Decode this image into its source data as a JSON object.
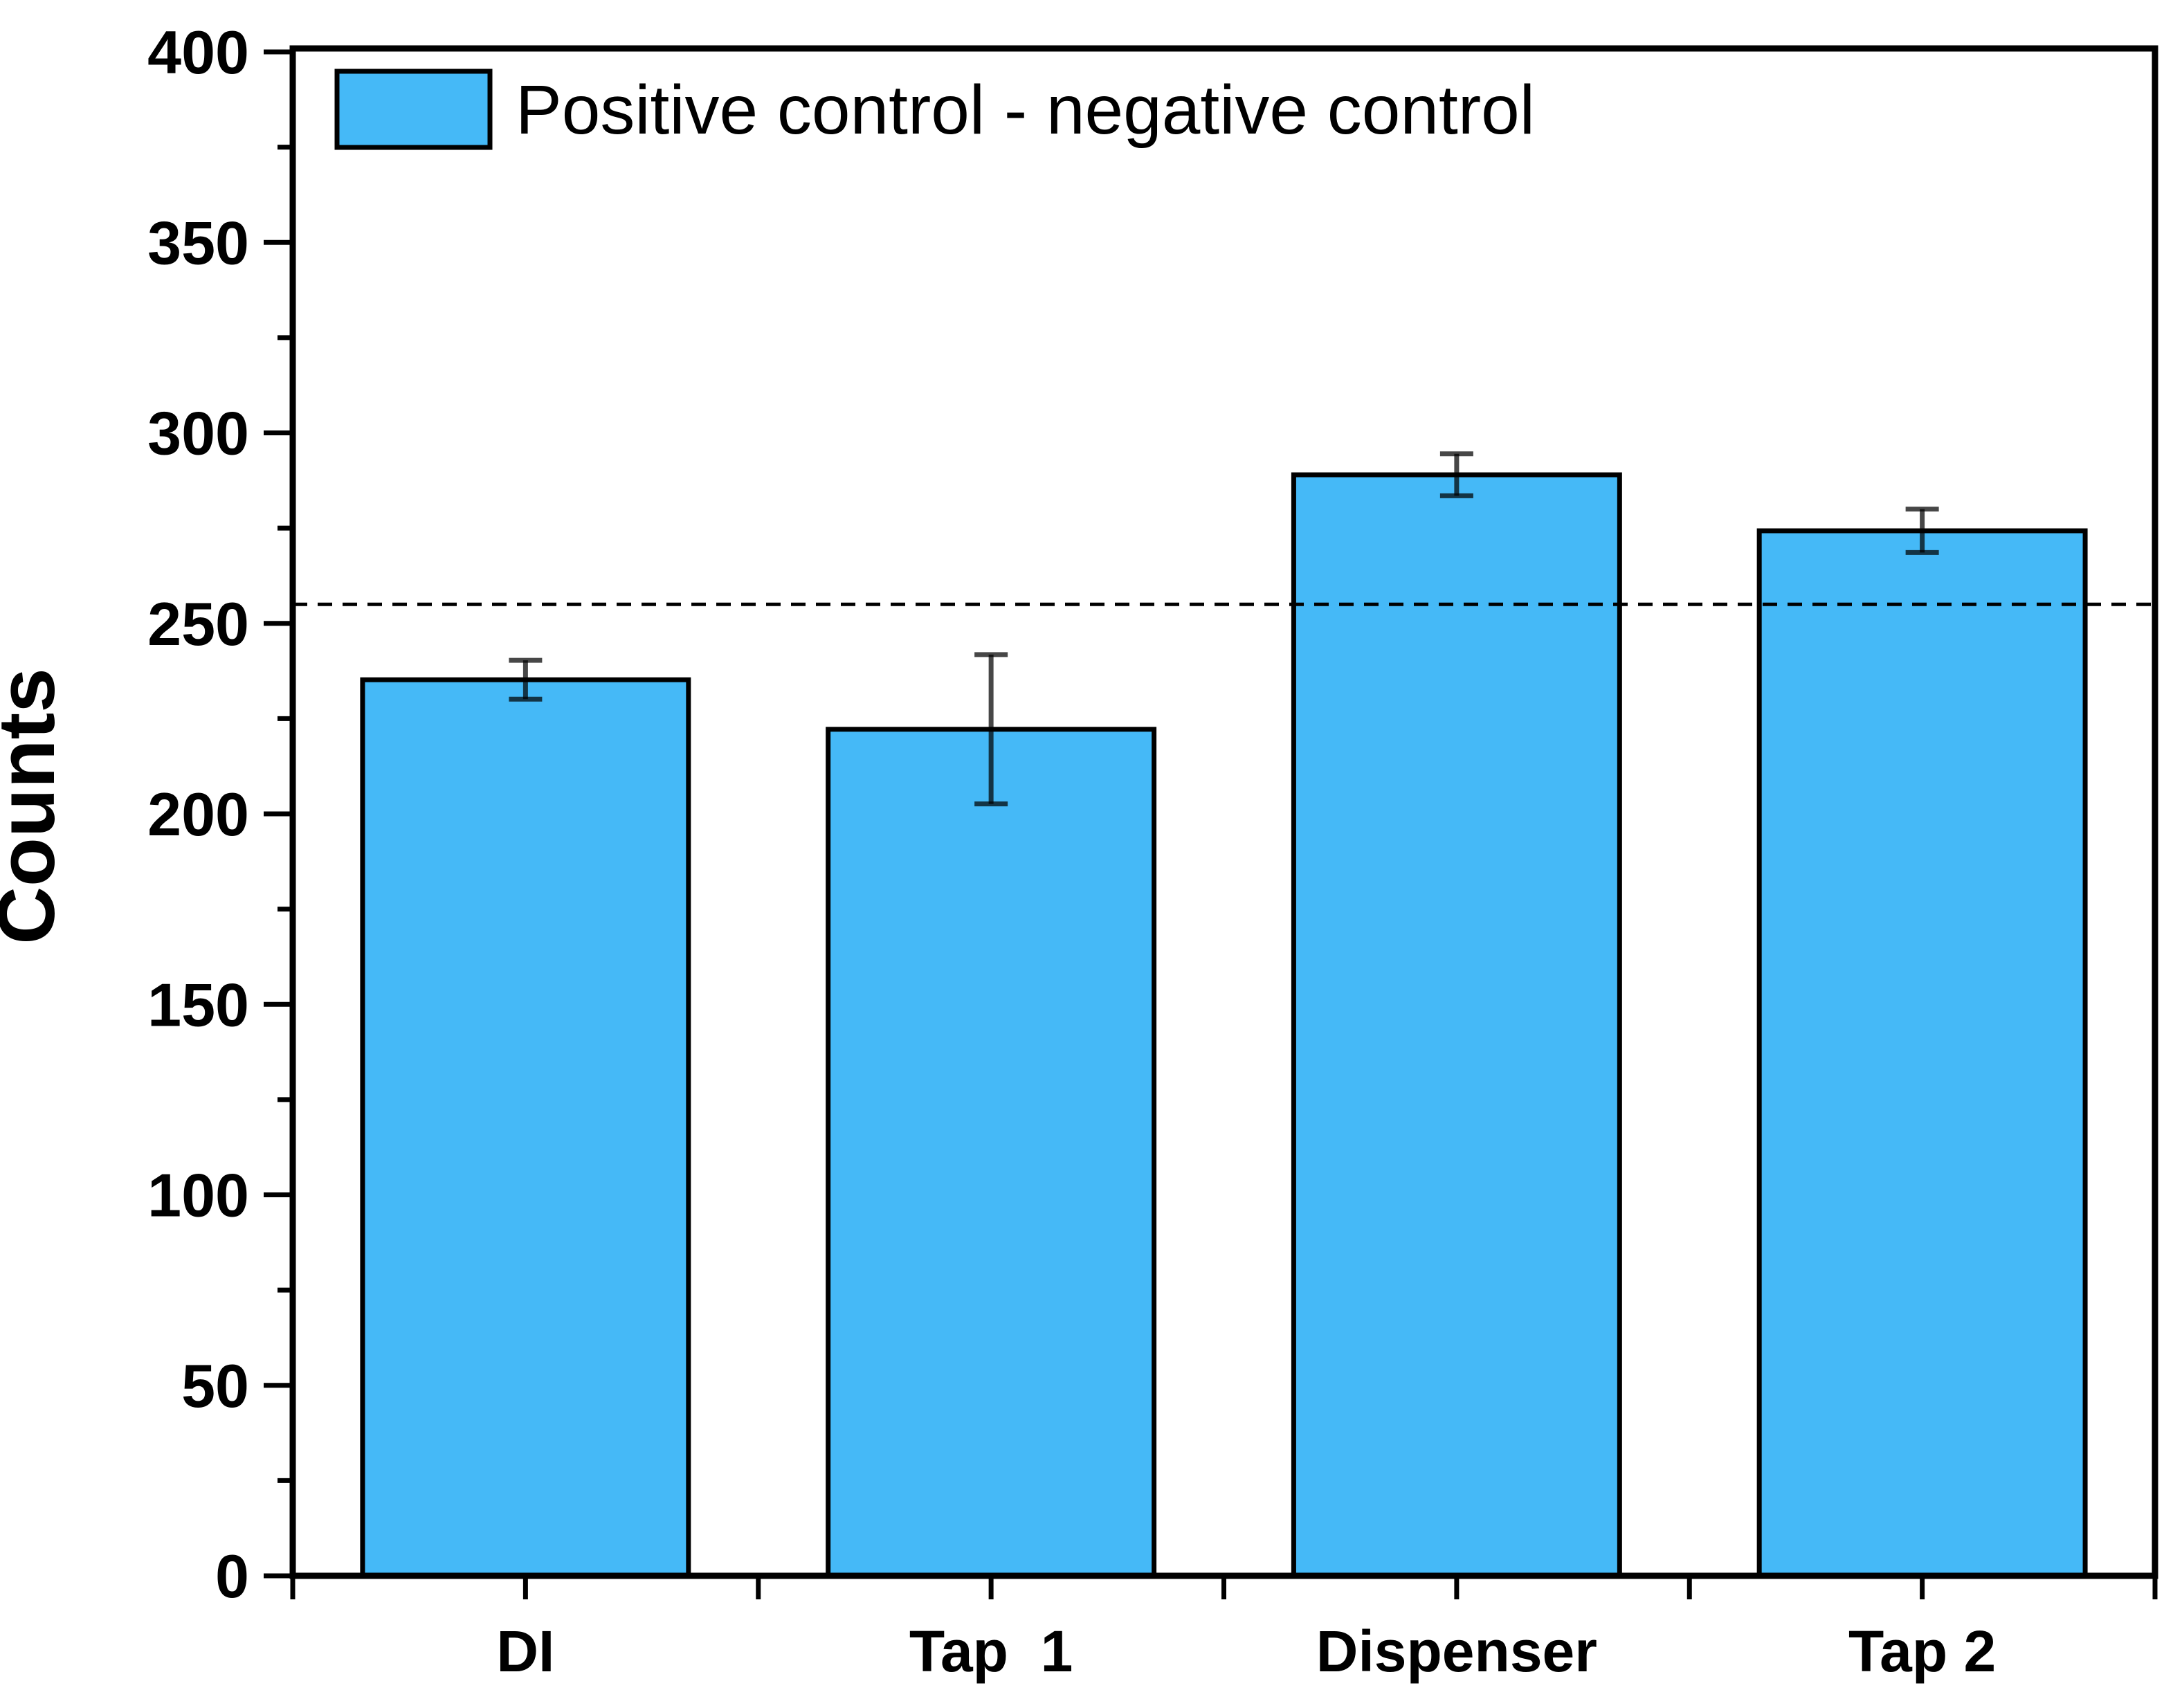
{
  "figure": {
    "background": "#ffffff"
  },
  "chart_data": {
    "type": "bar",
    "title": "",
    "xlabel": "",
    "ylabel": "Counts",
    "categories": [
      "DI",
      "Tap  1",
      "Dispenser",
      "Tap 2"
    ],
    "series": [
      {
        "name": "Positive control - negative control",
        "values": [
          235.2,
          222.2,
          289.0,
          274.3
        ],
        "errors": [
          5.1,
          19.6,
          5.5,
          5.7
        ]
      }
    ],
    "reference_line": {
      "y": 255,
      "style": "dashed"
    },
    "ylim": [
      0,
      400
    ],
    "y_major_tick_step": 50,
    "y_minor_tick_step": 25,
    "y_tick_labels": [
      "0",
      "50",
      "100",
      "150",
      "200",
      "250",
      "300",
      "350",
      "400"
    ],
    "legend_position": "top-left",
    "legend_entries": [
      "Positive control - negative control"
    ],
    "grid": false,
    "frame": true,
    "colors": {
      "bar_fill": "#45B9F7",
      "bar_edge": "#000000",
      "error_bar": "rgba(0,0,0,0.72)",
      "axis": "#000000",
      "text": "#000000",
      "reference_line": "#000000"
    }
  }
}
